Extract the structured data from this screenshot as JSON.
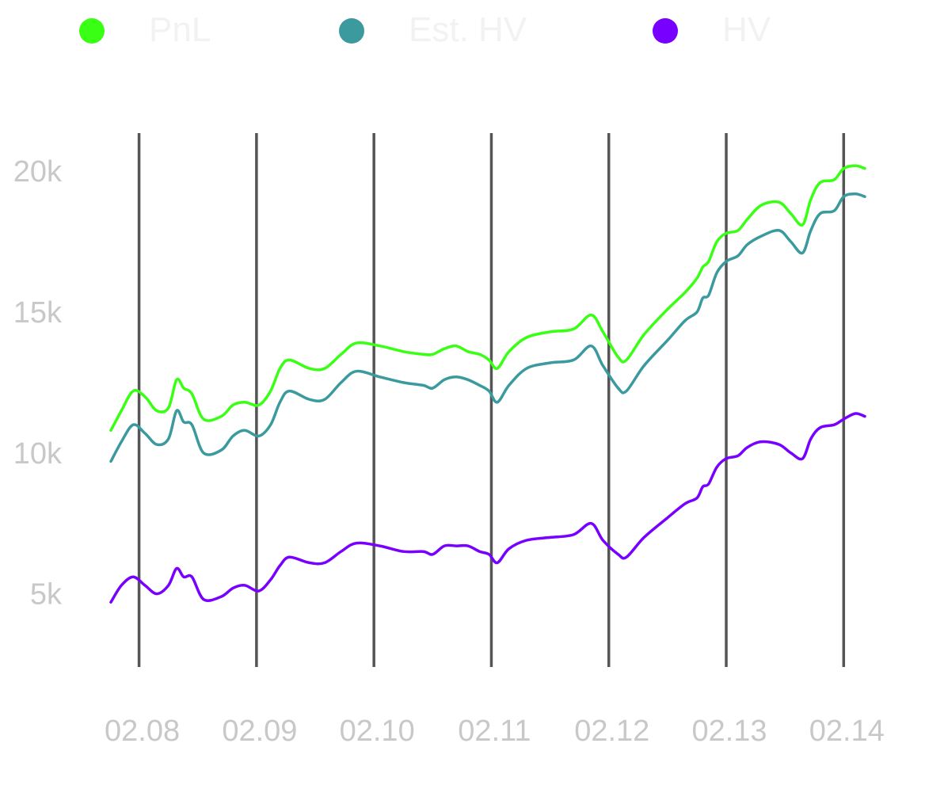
{
  "chart_data": {
    "type": "line",
    "title": "",
    "xlabel": "",
    "ylabel": "",
    "x_ticks": [
      "02.08",
      "02.09",
      "02.10",
      "02.11",
      "02.12",
      "02.13",
      "02.14"
    ],
    "y_ticks": [
      {
        "value": 5000,
        "label": "5k"
      },
      {
        "value": 10000,
        "label": "10k"
      },
      {
        "value": 15000,
        "label": "15k"
      },
      {
        "value": 20000,
        "label": "20k"
      }
    ],
    "xlim": [
      7.76,
      14.18
    ],
    "ylim": [
      2400,
      21300
    ],
    "grid": "vertical",
    "legend_position": "top",
    "x_unit": "day of February (02.08 = 8.0)",
    "series": [
      {
        "name": "PnL",
        "color": "#39ff14",
        "points": [
          [
            7.76,
            10800
          ],
          [
            7.85,
            11500
          ],
          [
            7.95,
            12200
          ],
          [
            8.05,
            12000
          ],
          [
            8.15,
            11500
          ],
          [
            8.25,
            11600
          ],
          [
            8.32,
            12600
          ],
          [
            8.38,
            12300
          ],
          [
            8.45,
            12100
          ],
          [
            8.55,
            11200
          ],
          [
            8.7,
            11300
          ],
          [
            8.8,
            11700
          ],
          [
            8.9,
            11800
          ],
          [
            9.02,
            11700
          ],
          [
            9.12,
            12200
          ],
          [
            9.2,
            13000
          ],
          [
            9.28,
            13300
          ],
          [
            9.45,
            13000
          ],
          [
            9.58,
            13000
          ],
          [
            9.72,
            13500
          ],
          [
            9.85,
            13900
          ],
          [
            10.05,
            13800
          ],
          [
            10.25,
            13600
          ],
          [
            10.42,
            13500
          ],
          [
            10.5,
            13500
          ],
          [
            10.6,
            13700
          ],
          [
            10.7,
            13800
          ],
          [
            10.8,
            13600
          ],
          [
            10.9,
            13500
          ],
          [
            10.98,
            13300
          ],
          [
            11.05,
            13000
          ],
          [
            11.15,
            13600
          ],
          [
            11.3,
            14100
          ],
          [
            11.5,
            14300
          ],
          [
            11.7,
            14400
          ],
          [
            11.85,
            14900
          ],
          [
            11.95,
            14300
          ],
          [
            12.08,
            13400
          ],
          [
            12.15,
            13300
          ],
          [
            12.3,
            14200
          ],
          [
            12.5,
            15100
          ],
          [
            12.65,
            15700
          ],
          [
            12.75,
            16200
          ],
          [
            12.8,
            16600
          ],
          [
            12.85,
            16800
          ],
          [
            12.92,
            17500
          ],
          [
            13.0,
            17800
          ],
          [
            13.1,
            17900
          ],
          [
            13.18,
            18300
          ],
          [
            13.3,
            18800
          ],
          [
            13.45,
            18900
          ],
          [
            13.55,
            18500
          ],
          [
            13.65,
            18100
          ],
          [
            13.72,
            19000
          ],
          [
            13.8,
            19600
          ],
          [
            13.92,
            19700
          ],
          [
            14.0,
            20100
          ],
          [
            14.1,
            20200
          ],
          [
            14.18,
            20100
          ]
        ]
      },
      {
        "name": "Est. HV",
        "color": "#3a9a9e",
        "points": [
          [
            7.76,
            9700
          ],
          [
            7.85,
            10400
          ],
          [
            7.95,
            11000
          ],
          [
            8.05,
            10700
          ],
          [
            8.15,
            10300
          ],
          [
            8.25,
            10500
          ],
          [
            8.32,
            11500
          ],
          [
            8.38,
            11100
          ],
          [
            8.45,
            11000
          ],
          [
            8.55,
            10000
          ],
          [
            8.7,
            10100
          ],
          [
            8.8,
            10600
          ],
          [
            8.9,
            10800
          ],
          [
            9.02,
            10600
          ],
          [
            9.12,
            11000
          ],
          [
            9.2,
            11800
          ],
          [
            9.28,
            12200
          ],
          [
            9.45,
            11900
          ],
          [
            9.58,
            11900
          ],
          [
            9.72,
            12500
          ],
          [
            9.85,
            12900
          ],
          [
            10.05,
            12700
          ],
          [
            10.25,
            12500
          ],
          [
            10.42,
            12400
          ],
          [
            10.5,
            12300
          ],
          [
            10.6,
            12600
          ],
          [
            10.7,
            12700
          ],
          [
            10.8,
            12600
          ],
          [
            10.9,
            12400
          ],
          [
            10.98,
            12200
          ],
          [
            11.05,
            11800
          ],
          [
            11.15,
            12400
          ],
          [
            11.3,
            13000
          ],
          [
            11.5,
            13200
          ],
          [
            11.7,
            13300
          ],
          [
            11.85,
            13800
          ],
          [
            11.95,
            13100
          ],
          [
            12.08,
            12300
          ],
          [
            12.15,
            12200
          ],
          [
            12.3,
            13100
          ],
          [
            12.5,
            14000
          ],
          [
            12.65,
            14700
          ],
          [
            12.75,
            15000
          ],
          [
            12.8,
            15500
          ],
          [
            12.85,
            15600
          ],
          [
            12.92,
            16400
          ],
          [
            13.0,
            16800
          ],
          [
            13.1,
            17000
          ],
          [
            13.18,
            17400
          ],
          [
            13.3,
            17700
          ],
          [
            13.45,
            17900
          ],
          [
            13.55,
            17500
          ],
          [
            13.65,
            17100
          ],
          [
            13.72,
            17900
          ],
          [
            13.8,
            18500
          ],
          [
            13.92,
            18600
          ],
          [
            14.0,
            19100
          ],
          [
            14.1,
            19200
          ],
          [
            14.18,
            19100
          ]
        ]
      },
      {
        "name": "HV",
        "color": "#7700ff",
        "points": [
          [
            7.76,
            4700
          ],
          [
            7.85,
            5300
          ],
          [
            7.95,
            5600
          ],
          [
            8.05,
            5300
          ],
          [
            8.15,
            5000
          ],
          [
            8.25,
            5300
          ],
          [
            8.32,
            5900
          ],
          [
            8.38,
            5600
          ],
          [
            8.45,
            5600
          ],
          [
            8.55,
            4800
          ],
          [
            8.7,
            4900
          ],
          [
            8.8,
            5200
          ],
          [
            8.9,
            5300
          ],
          [
            9.02,
            5100
          ],
          [
            9.12,
            5500
          ],
          [
            9.2,
            6000
          ],
          [
            9.28,
            6300
          ],
          [
            9.45,
            6100
          ],
          [
            9.58,
            6100
          ],
          [
            9.72,
            6500
          ],
          [
            9.85,
            6800
          ],
          [
            10.05,
            6700
          ],
          [
            10.25,
            6500
          ],
          [
            10.42,
            6500
          ],
          [
            10.5,
            6400
          ],
          [
            10.6,
            6700
          ],
          [
            10.7,
            6700
          ],
          [
            10.8,
            6700
          ],
          [
            10.9,
            6500
          ],
          [
            10.98,
            6400
          ],
          [
            11.05,
            6100
          ],
          [
            11.15,
            6600
          ],
          [
            11.3,
            6900
          ],
          [
            11.5,
            7000
          ],
          [
            11.7,
            7100
          ],
          [
            11.85,
            7500
          ],
          [
            11.95,
            6900
          ],
          [
            12.08,
            6400
          ],
          [
            12.15,
            6300
          ],
          [
            12.3,
            7000
          ],
          [
            12.5,
            7700
          ],
          [
            12.65,
            8200
          ],
          [
            12.75,
            8400
          ],
          [
            12.8,
            8800
          ],
          [
            12.85,
            8900
          ],
          [
            12.92,
            9500
          ],
          [
            13.0,
            9800
          ],
          [
            13.1,
            9900
          ],
          [
            13.18,
            10200
          ],
          [
            13.3,
            10400
          ],
          [
            13.45,
            10300
          ],
          [
            13.55,
            10000
          ],
          [
            13.65,
            9800
          ],
          [
            13.72,
            10500
          ],
          [
            13.8,
            10900
          ],
          [
            13.92,
            11000
          ],
          [
            14.0,
            11200
          ],
          [
            14.1,
            11400
          ],
          [
            14.18,
            11300
          ]
        ]
      }
    ]
  }
}
